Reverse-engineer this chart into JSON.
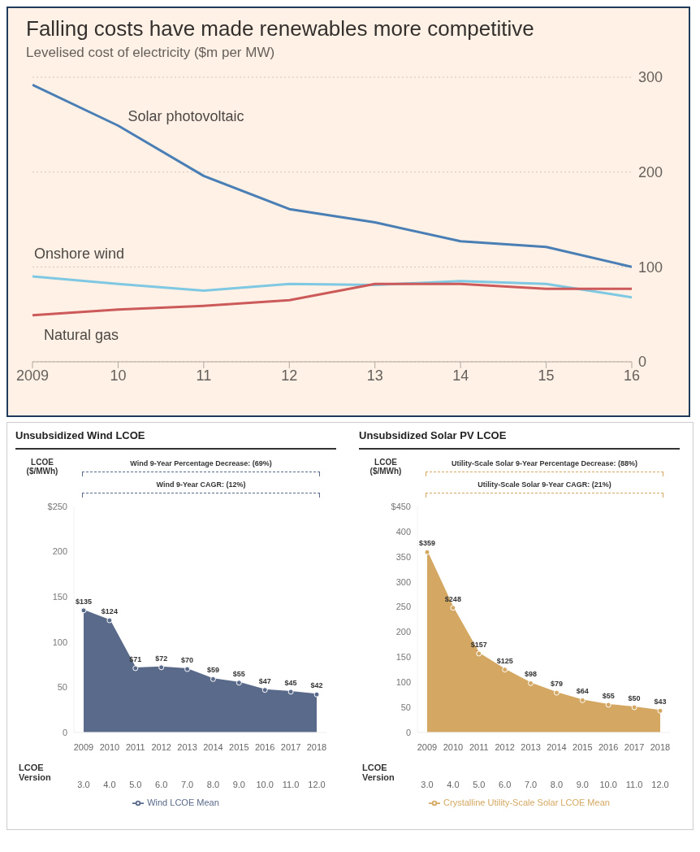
{
  "chart_data": [
    {
      "type": "line",
      "title": "Falling costs have made renewables more competitive",
      "subtitle": "Levelised cost of electricity ($m per MW)",
      "x": [
        2009,
        2010,
        2011,
        2012,
        2013,
        2014,
        2015,
        2016
      ],
      "xlim": [
        2009,
        2016
      ],
      "xticks": [
        2009,
        {
          "value": 2010,
          "label": "10"
        },
        {
          "value": 2011,
          "label": "11"
        },
        {
          "value": 2012,
          "label": "12"
        },
        {
          "value": 2013,
          "label": "13"
        },
        {
          "value": 2014,
          "label": "14"
        },
        {
          "value": 2015,
          "label": "15"
        },
        {
          "value": 2016,
          "label": "16"
        }
      ],
      "ylim": [
        0,
        300
      ],
      "yticks": [
        0,
        100,
        200,
        300
      ],
      "grid": "y",
      "legend": false,
      "series": [
        {
          "name": "Solar photovoltaic",
          "color": "#4a7fb5",
          "values": [
            292,
            249,
            196,
            161,
            147,
            127,
            121,
            100
          ]
        },
        {
          "name": "Onshore wind",
          "color": "#7ec8e3",
          "values": [
            90,
            82,
            75,
            82,
            81,
            85,
            82,
            68
          ]
        },
        {
          "name": "Natural gas",
          "color": "#cc5a5a",
          "values": [
            49,
            55,
            59,
            65,
            82,
            82,
            77,
            77
          ]
        }
      ]
    },
    {
      "type": "area",
      "title": "Unsubsidized Wind LCOE",
      "ylabel": "LCOE ($/MWh)",
      "categories": [
        "2009",
        "2010",
        "2011",
        "2012",
        "2013",
        "2014",
        "2015",
        "2016",
        "2017",
        "2018"
      ],
      "ylim": [
        0,
        250
      ],
      "yticks": [
        0,
        50,
        100,
        150,
        200,
        {
          "value": 250,
          "label": "$250"
        }
      ],
      "marker": "circle",
      "legend": "bottom",
      "annotations": [
        "Wind 9-Year Percentage Decrease: (69%)",
        "Wind 9-Year CAGR: (12%)",
        "LCOE Version",
        "3.0",
        "4.0",
        "5.0",
        "6.0",
        "7.0",
        "8.0",
        "9.0",
        "10.0",
        "11.0",
        "12.0"
      ],
      "series": [
        {
          "name": "Wind LCOE Mean",
          "color": "#5a6a8a",
          "values": [
            135,
            124,
            71,
            72,
            70,
            59,
            55,
            47,
            45,
            42
          ],
          "value_labels": [
            "$135",
            "$124",
            "$71",
            "$72",
            "$70",
            "$59",
            "$55",
            "$47",
            "$45",
            "$42"
          ]
        }
      ]
    },
    {
      "type": "area",
      "title": "Unsubsidized Solar PV LCOE",
      "ylabel": "LCOE ($/MWh)",
      "categories": [
        "2009",
        "2010",
        "2011",
        "2012",
        "2013",
        "2014",
        "2015",
        "2016",
        "2017",
        "2018"
      ],
      "ylim": [
        0,
        450
      ],
      "yticks": [
        0,
        50,
        100,
        150,
        200,
        250,
        300,
        350,
        400,
        {
          "value": 450,
          "label": "$450"
        }
      ],
      "marker": "circle",
      "legend": "bottom",
      "annotations": [
        "Utility-Scale Solar 9-Year Percentage Decrease: (88%)",
        "Utility-Scale Solar 9-Year CAGR: (21%)",
        "LCOE Version",
        "3.0",
        "4.0",
        "5.0",
        "6.0",
        "7.0",
        "8.0",
        "9.0",
        "10.0",
        "11.0",
        "12.0"
      ],
      "series": [
        {
          "name": "Crystalline Utility-Scale Solar LCOE Mean",
          "color": "#d4a862",
          "values": [
            359,
            248,
            157,
            125,
            98,
            79,
            64,
            55,
            50,
            43
          ],
          "value_labels": [
            "$359",
            "$248",
            "$157",
            "$125",
            "$98",
            "$79",
            "$64",
            "$55",
            "$50",
            "$43"
          ]
        }
      ]
    }
  ]
}
